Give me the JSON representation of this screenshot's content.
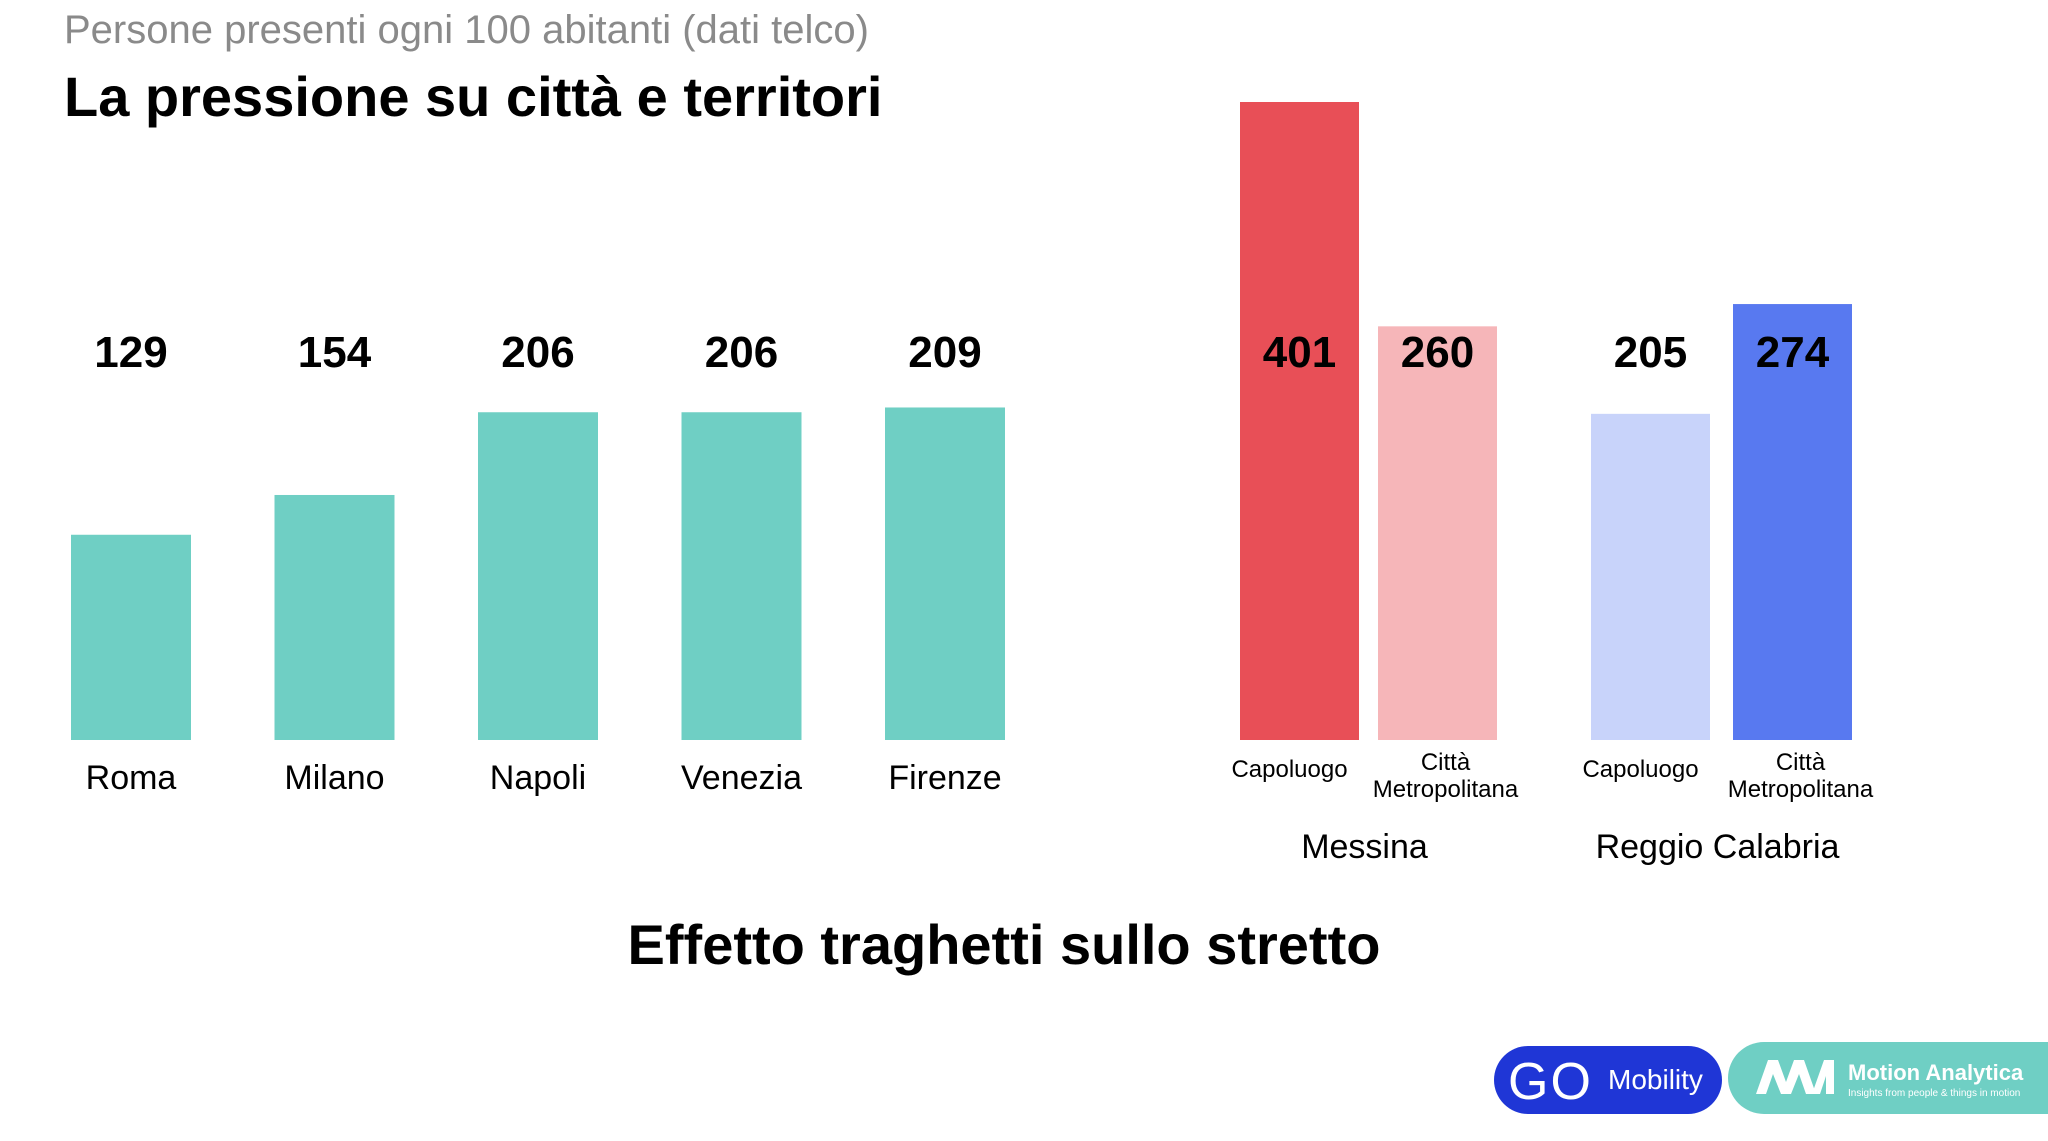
{
  "header": {
    "subtitle": "Persone presenti ogni 100 abitanti (dati telco)",
    "title": "La pressione su città e territori"
  },
  "caption": "Effetto traghetti sullo stretto",
  "colors": {
    "teal": "#6fcfc4",
    "messina_capoluogo": "#e84f57",
    "messina_metro": "#f6b6b9",
    "reggio_capoluogo": "#c8d3fa",
    "reggio_metro": "#5879f0"
  },
  "chart_data": [
    {
      "type": "bar",
      "categories": [
        "Roma",
        "Milano",
        "Napoli",
        "Venezia",
        "Firenze"
      ],
      "values": [
        129,
        154,
        206,
        206,
        209
      ],
      "ylim": [
        0,
        401
      ]
    },
    {
      "type": "bar",
      "groups": [
        {
          "label": "Messina",
          "bars": [
            {
              "label": "Capoluogo",
              "value": 401,
              "color": "#e84f57"
            },
            {
              "label": "Città Metropolitana",
              "value": 260,
              "color": "#f6b6b9"
            }
          ]
        },
        {
          "label": "Reggio Calabria",
          "bars": [
            {
              "label": "Capoluogo",
              "value": 205,
              "color": "#c8d3fa"
            },
            {
              "label": "Città Metropolitana",
              "value": 274,
              "color": "#5879f0"
            }
          ]
        }
      ],
      "ylim": [
        0,
        401
      ]
    }
  ],
  "logos": {
    "go_mobility": {
      "mark": "GO",
      "name": "Mobility"
    },
    "motion_analytica": {
      "name": "Motion Analytica",
      "tagline": "Insights from people & things in motion"
    }
  }
}
